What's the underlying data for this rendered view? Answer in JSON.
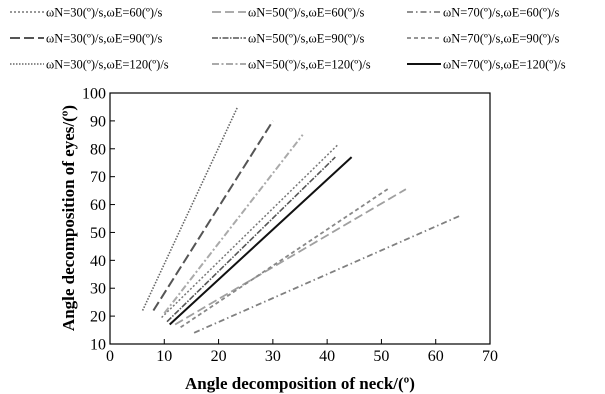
{
  "chart_data": {
    "type": "line",
    "xlabel": "Angle decomposition of neck/(º)",
    "ylabel": "Angle decomposition of eyes/(º)",
    "xlim": [
      0,
      70
    ],
    "ylim": [
      10,
      100
    ],
    "xticks": [
      0,
      10,
      20,
      30,
      40,
      50,
      60,
      70
    ],
    "yticks": [
      10,
      20,
      30,
      40,
      50,
      60,
      70,
      80,
      90,
      100
    ],
    "grid": false,
    "legend_position": "top",
    "series": [
      {
        "name": "ωN=30(º)/s,ωE=60(º)/s",
        "color": "#777777",
        "dash": "2,2",
        "width": 1.5,
        "x": [
          9.5,
          42.0
        ],
        "y": [
          19.5,
          81.5
        ]
      },
      {
        "name": "ωN=50(º)/s,ωE=60(º)/s",
        "color": "#a0a0a0",
        "dash": "9,4",
        "width": 1.8,
        "x": [
          12.0,
          54.5
        ],
        "y": [
          17.0,
          65.5
        ]
      },
      {
        "name": "ωN=70(º)/s,ωE=60(º)/s",
        "color": "#808080",
        "dash": "6,3,1.5,3",
        "width": 1.8,
        "x": [
          15.5,
          64.5
        ],
        "y": [
          14.0,
          56.0
        ]
      },
      {
        "name": "ωN=30(º)/s,ωE=90(º)/s",
        "color": "#555555",
        "dash": "10,4",
        "width": 2.0,
        "x": [
          8.0,
          30.0
        ],
        "y": [
          22.0,
          90.0
        ]
      },
      {
        "name": "ωN=50(º)/s,ωE=90(º)/s",
        "color": "#555555",
        "dash": "6,1.5,1.5,1.5",
        "width": 1.6,
        "x": [
          10.5,
          41.5
        ],
        "y": [
          18.0,
          77.0
        ]
      },
      {
        "name": "ωN=70(º)/s,ωE=90(º)/s",
        "color": "#888888",
        "dash": "4,3",
        "width": 1.8,
        "x": [
          13.0,
          51.5
        ],
        "y": [
          16.0,
          66.0
        ]
      },
      {
        "name": "ωN=30(º)/s,ωE=120(º)/s",
        "color": "#666666",
        "dash": "1.5,1.5",
        "width": 1.6,
        "x": [
          6.0,
          23.5
        ],
        "y": [
          22.0,
          95.0
        ]
      },
      {
        "name": "ωN=50(º)/s,ωE=120(º)/s",
        "color": "#aaaaaa",
        "dash": "7,2.5,2,2.5",
        "width": 2.0,
        "x": [
          10.0,
          35.5
        ],
        "y": [
          21.0,
          85.0
        ]
      },
      {
        "name": "ωN=70(º)/s,ωE=120(º)/s",
        "color": "#111111",
        "dash": "none",
        "width": 2.0,
        "x": [
          11.0,
          44.5
        ],
        "y": [
          17.0,
          77.0
        ]
      }
    ]
  }
}
